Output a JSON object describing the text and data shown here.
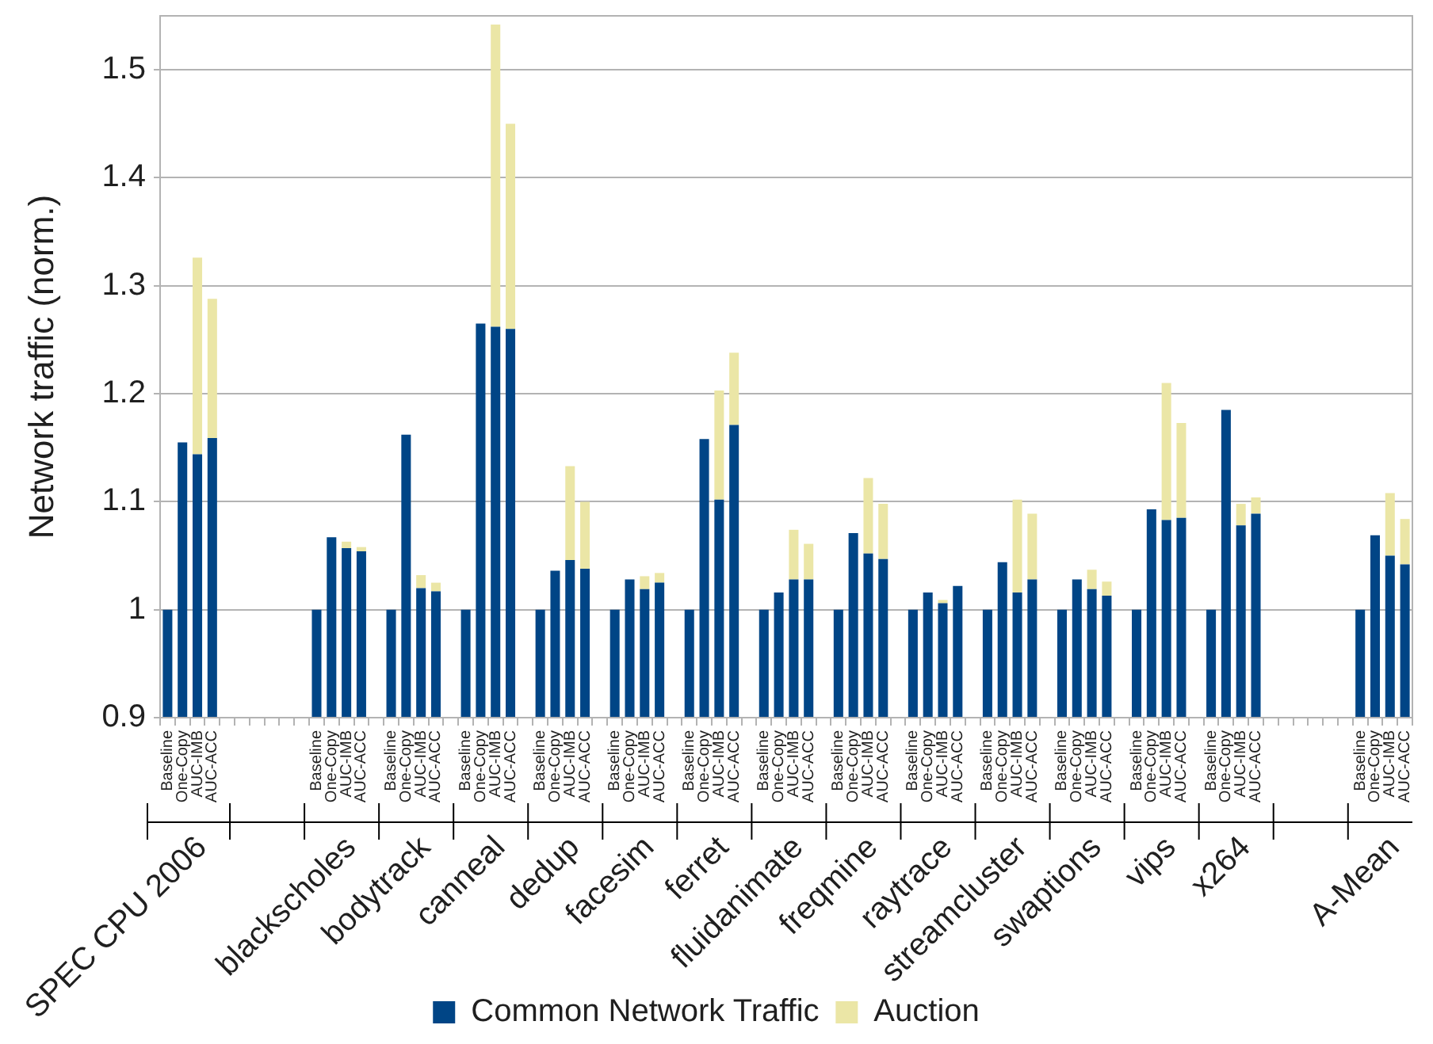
{
  "chart_data": {
    "type": "bar",
    "ylabel": "Network traffic (norm.)",
    "legend": "bottom",
    "grid": "y",
    "ylim": [
      0.9,
      1.55
    ],
    "yticks": [
      0.9,
      1,
      1.1,
      1.2,
      1.3,
      1.4,
      1.5
    ],
    "categories": [
      "Baseline",
      "One-Copy",
      "AUC-IMB",
      "AUC-ACC",
      null,
      null,
      null,
      null,
      null,
      null,
      "Baseline",
      "One-Copy",
      "AUC-IMB",
      "AUC-ACC",
      null,
      "Baseline",
      "One-Copy",
      "AUC-IMB",
      "AUC-ACC",
      null,
      "Baseline",
      "One-Copy",
      "AUC-IMB",
      "AUC-ACC",
      null,
      "Baseline",
      "One-Copy",
      "AUC-IMB",
      "AUC-ACC",
      null,
      "Baseline",
      "One-Copy",
      "AUC-IMB",
      "AUC-ACC",
      null,
      "Baseline",
      "One-Copy",
      "AUC-IMB",
      "AUC-ACC",
      null,
      "Baseline",
      "One-Copy",
      "AUC-IMB",
      "AUC-ACC",
      null,
      "Baseline",
      "One-Copy",
      "AUC-IMB",
      "AUC-ACC",
      null,
      "Baseline",
      "One-Copy",
      "AUC-IMB",
      "AUC-ACC",
      null,
      "Baseline",
      "One-Copy",
      "AUC-IMB",
      "AUC-ACC",
      null,
      "Baseline",
      "One-Copy",
      "AUC-IMB",
      "AUC-ACC",
      null,
      "Baseline",
      "One-Copy",
      "AUC-IMB",
      "AUC-ACC",
      null,
      "Baseline",
      "One-Copy",
      "AUC-IMB",
      "AUC-ACC",
      null,
      null,
      null,
      null,
      null,
      null,
      "Baseline",
      "One-Copy",
      "AUC-IMB",
      "AUC-ACC"
    ],
    "series": [
      {
        "name": "Common Network Traffic",
        "color": "#004586",
        "values": [
          1,
          1.155,
          1.144,
          1.159,
          null,
          null,
          null,
          null,
          null,
          null,
          1,
          1.067,
          1.057,
          1.054,
          null,
          1,
          1.162,
          1.02,
          1.017,
          null,
          1,
          1.265,
          1.262,
          1.26,
          null,
          1,
          1.036,
          1.046,
          1.038,
          null,
          1,
          1.028,
          1.019,
          1.025,
          null,
          1,
          1.158,
          1.102,
          1.171,
          null,
          1,
          1.016,
          1.028,
          1.028,
          null,
          1,
          1.071,
          1.052,
          1.047,
          null,
          1,
          1.016,
          1.006,
          1.022,
          null,
          1,
          1.044,
          1.016,
          1.028,
          null,
          1,
          1.028,
          1.019,
          1.013,
          null,
          1,
          1.093,
          1.083,
          1.085,
          null,
          1,
          1.185,
          1.078,
          1.089,
          null,
          null,
          null,
          null,
          null,
          null,
          1,
          1.069,
          1.05,
          1.042
        ]
      },
      {
        "name": "Auction",
        "color": "#ebe6a6",
        "values": [
          null,
          null,
          0.182,
          0.129,
          null,
          null,
          null,
          null,
          null,
          null,
          null,
          null,
          0.006,
          0.004,
          null,
          null,
          null,
          0.012,
          0.008,
          null,
          null,
          null,
          0.28,
          0.19,
          null,
          null,
          null,
          0.087,
          0.062,
          null,
          null,
          null,
          0.012,
          0.009,
          null,
          null,
          null,
          0.101,
          0.067,
          null,
          null,
          null,
          0.046,
          0.033,
          null,
          null,
          null,
          0.07,
          0.051,
          null,
          null,
          null,
          0.003,
          null,
          null,
          null,
          null,
          0.086,
          0.061,
          null,
          null,
          null,
          0.018,
          0.013,
          null,
          null,
          null,
          0.127,
          0.088,
          null,
          null,
          null,
          0.02,
          0.015,
          null,
          null,
          null,
          null,
          null,
          null,
          null,
          null,
          0.058,
          0.042
        ],
        "base": [
          null,
          null,
          1.144,
          1.159,
          null,
          null,
          null,
          null,
          null,
          null,
          null,
          null,
          1.057,
          1.054,
          null,
          null,
          null,
          1.02,
          1.017,
          null,
          null,
          null,
          1.262,
          1.26,
          null,
          null,
          null,
          1.046,
          1.038,
          null,
          null,
          null,
          1.019,
          1.025,
          null,
          null,
          null,
          1.102,
          1.171,
          null,
          null,
          null,
          1.028,
          1.028,
          null,
          null,
          null,
          1.052,
          1.047,
          null,
          null,
          null,
          1.006,
          null,
          null,
          null,
          null,
          1.016,
          1.028,
          null,
          null,
          null,
          1.019,
          1.013,
          null,
          null,
          null,
          1.083,
          1.085,
          null,
          null,
          null,
          1.078,
          1.089,
          null,
          null,
          null,
          null,
          null,
          null,
          null,
          null,
          1.05,
          1.042
        ]
      }
    ],
    "annotations": [
      "SPEC CPU 2006",
      "blackscholes",
      "bodytrack",
      "canneal",
      "dedup",
      "facesim",
      "ferret",
      "fluidanimate",
      "freqmine",
      "raytrace",
      "streamcluster",
      "swaptions",
      "vips",
      "x264",
      "A-Mean"
    ]
  }
}
